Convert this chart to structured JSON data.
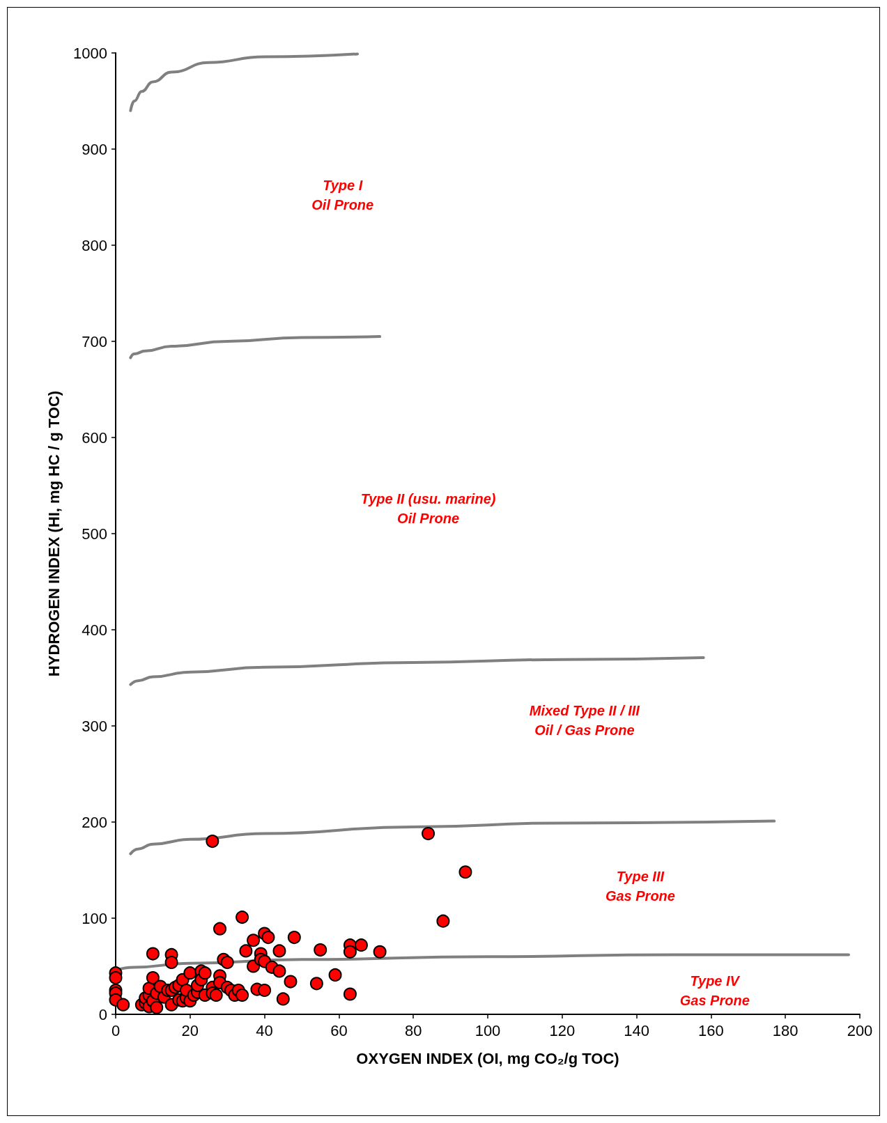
{
  "chart_data": {
    "type": "scatter",
    "xlabel": "OXYGEN INDEX (OI, mg CO₂/g TOC)",
    "ylabel": "HYDROGEN INDEX (HI, mg HC / g TOC)",
    "xlim": [
      0,
      200
    ],
    "xticks": [
      0,
      20,
      40,
      60,
      80,
      100,
      120,
      140,
      160,
      180,
      200
    ],
    "ylim": [
      0,
      1000
    ],
    "yticks": [
      0,
      100,
      200,
      300,
      400,
      500,
      600,
      700,
      800,
      900,
      1000
    ],
    "grid": false,
    "marker": "circle",
    "series": [
      {
        "type": "line",
        "color": "#808080",
        "marker": "none",
        "x": [
          4,
          5,
          7,
          10,
          15,
          25,
          40,
          65
        ],
        "values": [
          940,
          950,
          960,
          970,
          980,
          990,
          996,
          999
        ]
      },
      {
        "type": "line",
        "color": "#808080",
        "marker": "none",
        "x": [
          4,
          5,
          8,
          15,
          30,
          50,
          71
        ],
        "values": [
          683,
          687,
          690,
          695,
          700,
          704,
          705
        ]
      },
      {
        "type": "line",
        "color": "#808080",
        "marker": "none",
        "x": [
          4,
          6,
          10,
          20,
          40,
          80,
          120,
          158
        ],
        "values": [
          343,
          347,
          351,
          356,
          361,
          366,
          369,
          371
        ]
      },
      {
        "type": "line",
        "color": "#808080",
        "marker": "none",
        "x": [
          4,
          6,
          10,
          20,
          40,
          80,
          120,
          177
        ],
        "values": [
          167,
          172,
          177,
          182,
          188,
          195,
          199,
          201
        ]
      },
      {
        "type": "line",
        "color": "#808080",
        "marker": "none",
        "x": [
          0,
          5,
          20,
          50,
          100,
          150,
          197
        ],
        "values": [
          46,
          49,
          53,
          57,
          60,
          62,
          62
        ]
      },
      {
        "color": "#ff0000",
        "x": [
          0,
          0,
          0,
          0,
          0,
          2,
          7,
          8,
          8,
          9,
          9,
          9,
          10,
          10,
          10,
          11,
          11,
          12,
          13,
          14,
          15,
          15,
          15,
          15,
          16,
          17,
          17,
          18,
          18,
          19,
          19,
          20,
          20,
          21,
          22,
          22,
          23,
          23,
          24,
          24,
          26,
          26,
          26,
          27,
          28,
          28,
          28,
          29,
          30,
          30,
          31,
          32,
          33,
          34,
          34,
          35,
          37,
          37,
          38,
          39,
          39,
          40,
          40,
          40,
          41,
          42,
          44,
          44,
          45,
          47,
          48,
          54,
          55,
          59,
          63,
          63,
          63,
          66,
          71,
          84,
          88,
          94
        ],
        "values": [
          43,
          38,
          25,
          22,
          15,
          10,
          10,
          12,
          17,
          8,
          20,
          27,
          38,
          63,
          14,
          7,
          22,
          29,
          18,
          25,
          62,
          54,
          10,
          25,
          28,
          15,
          30,
          36,
          14,
          17,
          25,
          43,
          14,
          20,
          23,
          30,
          45,
          36,
          43,
          20,
          180,
          28,
          22,
          20,
          89,
          40,
          33,
          57,
          54,
          28,
          25,
          20,
          25,
          101,
          20,
          66,
          77,
          50,
          26,
          63,
          57,
          84,
          55,
          25,
          80,
          49,
          66,
          45,
          16,
          34,
          80,
          32,
          67,
          41,
          72,
          65,
          21,
          72,
          65,
          188,
          97,
          148
        ]
      }
    ],
    "annotations": [
      "Type I\nOil Prone",
      "Type II (usu. marine)\nOil Prone",
      "Mixed Type II / III\nOil / Gas Prone",
      "Type III\nGas Prone",
      "Type IV\nGas Prone"
    ]
  }
}
